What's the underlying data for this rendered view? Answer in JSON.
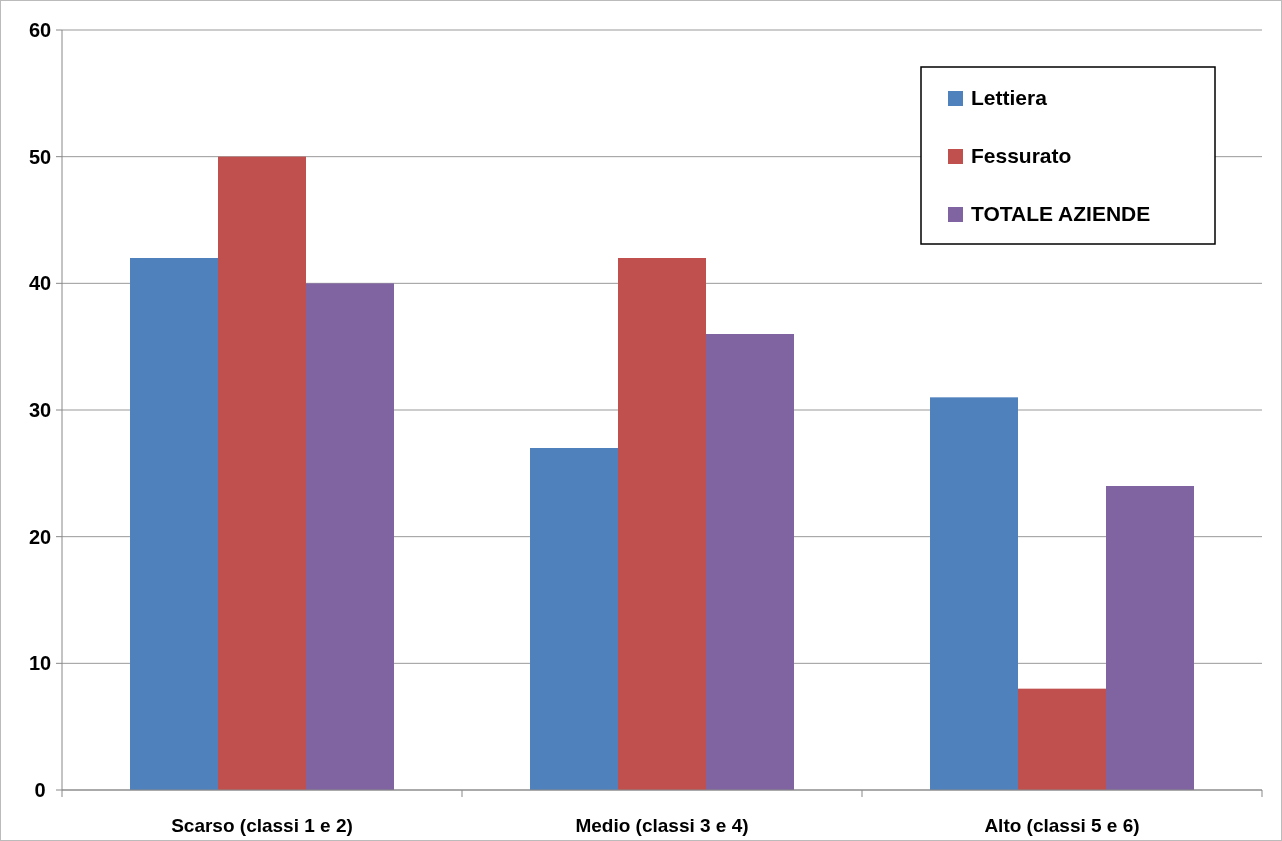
{
  "chart_data": {
    "type": "bar",
    "categories": [
      "Scarso (classi 1 e 2)",
      "Medio (classi 3 e 4)",
      "Alto (classi 5 e 6)"
    ],
    "series": [
      {
        "name": "Lettiera",
        "color": "#4f81bd",
        "values": [
          42,
          27,
          31
        ]
      },
      {
        "name": "Fessurato",
        "color": "#c0504d",
        "values": [
          50,
          42,
          8
        ]
      },
      {
        "name": "TOTALE AZIENDE",
        "color": "#8064a2",
        "values": [
          40,
          36,
          24
        ]
      }
    ],
    "ylim": [
      0,
      60
    ],
    "yticks": [
      0,
      10,
      20,
      30,
      40,
      50,
      60
    ],
    "grid": "y",
    "legend": "top right"
  }
}
